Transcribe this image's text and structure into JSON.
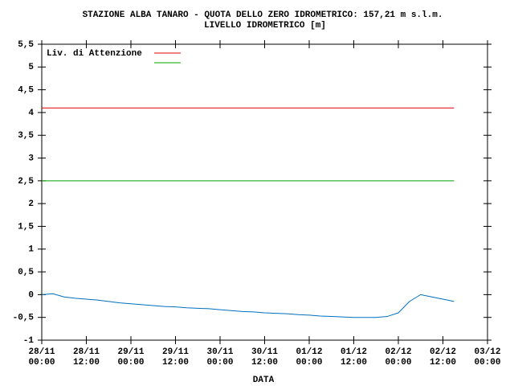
{
  "chart_data": {
    "type": "line",
    "title": "STAZIONE ALBA TANARO - QUOTA DELLO ZERO IDROMETRICO: 157,21 m s.l.m.",
    "subtitle": "LIVELLO IDROMETRICO [m]",
    "x_label": "DATA",
    "xlim": [
      "28/11\n00:00",
      "03/12\n00:00"
    ],
    "xticks": [
      "28/11\n00:00",
      "28/11\n12:00",
      "29/11\n00:00",
      "29/11\n12:00",
      "30/11\n00:00",
      "30/11\n12:00",
      "01/12\n00:00",
      "01/12\n12:00",
      "02/12\n00:00",
      "02/12\n12:00",
      "03/12\n00:00"
    ],
    "ylim": [
      -1,
      5.5
    ],
    "yticks": [
      -1,
      {
        "value": -0.5,
        "label": "-0,5"
      },
      0,
      {
        "value": 0.5,
        "label": "0,5"
      },
      1,
      {
        "value": 1.5,
        "label": "1,5"
      },
      2,
      {
        "value": 2.5,
        "label": "2,5"
      },
      3,
      {
        "value": 3.5,
        "label": "3,5"
      },
      4,
      {
        "value": 4.5,
        "label": "4,5"
      },
      5,
      {
        "value": 5.5,
        "label": "5,5"
      }
    ],
    "legend": "top-left",
    "series": [
      {
        "name": "Liv. di Attenzione",
        "color": "#e00000",
        "x": [
          "28/11\n00:00",
          "02/12\n15:00"
        ],
        "values": [
          4.1,
          4.1
        ]
      },
      {
        "color": "#00a000",
        "x": [
          "28/11\n00:00",
          "02/12\n15:00"
        ],
        "values": [
          2.5,
          2.5
        ]
      },
      {
        "color": "#0070c0",
        "x": [
          "28/11\n00:00",
          "28/11\n03:00",
          "28/11\n06:00",
          "28/11\n09:00",
          "28/11\n12:00",
          "28/11\n15:00",
          "28/11\n18:00",
          "28/11\n21:00",
          "29/11\n00:00",
          "29/11\n03:00",
          "29/11\n06:00",
          "29/11\n09:00",
          "29/11\n12:00",
          "29/11\n15:00",
          "29/11\n18:00",
          "29/11\n21:00",
          "30/11\n00:00",
          "30/11\n03:00",
          "30/11\n06:00",
          "30/11\n09:00",
          "30/11\n12:00",
          "30/11\n15:00",
          "30/11\n18:00",
          "30/11\n21:00",
          "01/12\n00:00",
          "01/12\n03:00",
          "01/12\n06:00",
          "01/12\n09:00",
          "01/12\n12:00",
          "01/12\n15:00",
          "01/12\n18:00",
          "01/12\n21:00",
          "02/12\n00:00",
          "02/12\n03:00",
          "02/12\n06:00",
          "02/12\n09:00",
          "02/12\n12:00",
          "02/12\n15:00"
        ],
        "values": [
          0,
          0.02,
          -0.05,
          -0.08,
          -0.1,
          -0.12,
          -0.15,
          -0.18,
          -0.2,
          -0.22,
          -0.24,
          -0.26,
          -0.27,
          -0.29,
          -0.3,
          -0.31,
          -0.33,
          -0.35,
          -0.37,
          -0.38,
          -0.4,
          -0.41,
          -0.42,
          -0.44,
          -0.45,
          -0.47,
          -0.48,
          -0.49,
          -0.5,
          -0.5,
          -0.5,
          -0.48,
          -0.4,
          -0.15,
          0,
          -0.05,
          -0.1,
          -0.15
        ]
      }
    ]
  }
}
